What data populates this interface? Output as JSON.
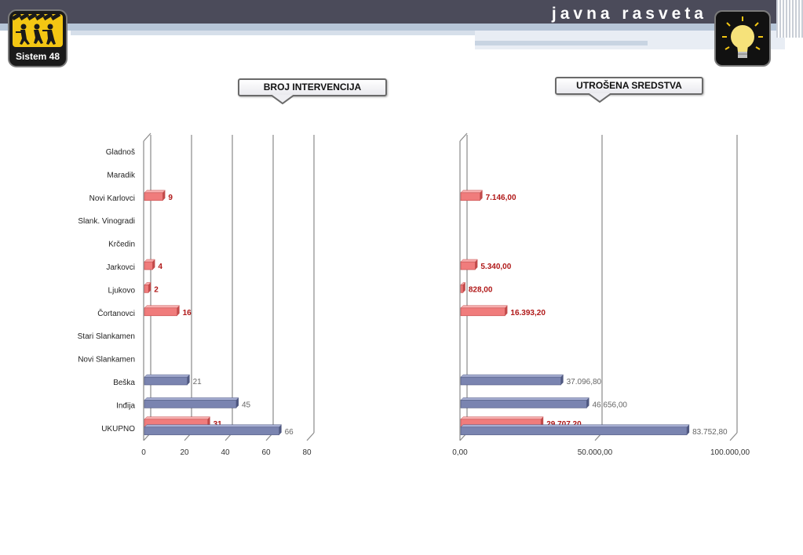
{
  "header": {
    "title": "javna rasveta",
    "logo_text": "Sistem 48",
    "colors": {
      "bar": "#4b4b5a",
      "stripe": "#b7c6d8"
    }
  },
  "icons": {
    "left_logo": "workers-logo-icon",
    "right_logo": "light-bulb-icon"
  },
  "callouts": {
    "left": "BROJ INTERVENCIJA",
    "right": "UTROŠENA SREDSTVA"
  },
  "chart_data": [
    {
      "type": "bar",
      "orientation": "horizontal",
      "categories": [
        "Gladnoš",
        "Maradik",
        "Novi Karlovci",
        "Slank. Vinogradi",
        "Krčedin",
        "Jarkovci",
        "Ljukovo",
        "Čortanovci",
        "Stari Slankamen",
        "Novi Slankamen",
        "Beška",
        "Inđija",
        "UKUPNO"
      ],
      "series": [
        {
          "color": "#f07c7c",
          "values": [
            null,
            null,
            9,
            null,
            null,
            4,
            2,
            16,
            null,
            null,
            null,
            null,
            31
          ]
        },
        {
          "color": "#7a84b0",
          "values": [
            null,
            null,
            null,
            null,
            null,
            null,
            null,
            null,
            null,
            null,
            21,
            45,
            66
          ]
        }
      ],
      "labels": [
        [
          null,
          null,
          "9",
          null,
          null,
          "4",
          "2",
          "16",
          null,
          null,
          null,
          null,
          "31"
        ],
        [
          null,
          null,
          null,
          null,
          null,
          null,
          null,
          null,
          null,
          null,
          "21",
          "45",
          "66"
        ]
      ],
      "xlim": [
        0,
        80
      ],
      "xticks": [
        "0",
        "20",
        "40",
        "60",
        "80"
      ],
      "xtick_values": [
        0,
        20,
        40,
        60,
        80
      ],
      "grid": true
    },
    {
      "type": "bar",
      "orientation": "horizontal",
      "categories": [
        "Gladnoš",
        "Maradik",
        "Novi Karlovci",
        "Slank. Vinogradi",
        "Krčedin",
        "Jarkovci",
        "Ljukovo",
        "Čortanovci",
        "Stari Slankamen",
        "Novi Slankamen",
        "Beška",
        "Inđija",
        "UKUPNO"
      ],
      "series": [
        {
          "color": "#f07c7c",
          "values": [
            null,
            null,
            7146.0,
            null,
            null,
            5340.0,
            828.0,
            16393.2,
            null,
            null,
            null,
            null,
            29707.2
          ]
        },
        {
          "color": "#7a84b0",
          "values": [
            null,
            null,
            null,
            null,
            null,
            null,
            null,
            null,
            null,
            null,
            37096.8,
            46656.0,
            83752.8
          ]
        }
      ],
      "labels": [
        [
          null,
          null,
          "7.146,00",
          null,
          null,
          "5.340,00",
          "828,00",
          "16.393,20",
          null,
          null,
          null,
          null,
          "29.707,20"
        ],
        [
          null,
          null,
          null,
          null,
          null,
          null,
          null,
          null,
          null,
          null,
          "37.096,80",
          "46.656,00",
          "83.752,80"
        ]
      ],
      "xlim": [
        0,
        100000
      ],
      "xticks": [
        "0,00",
        "50.000,00",
        "100.000,00"
      ],
      "xtick_values": [
        0,
        50000,
        100000
      ],
      "grid": true
    }
  ]
}
